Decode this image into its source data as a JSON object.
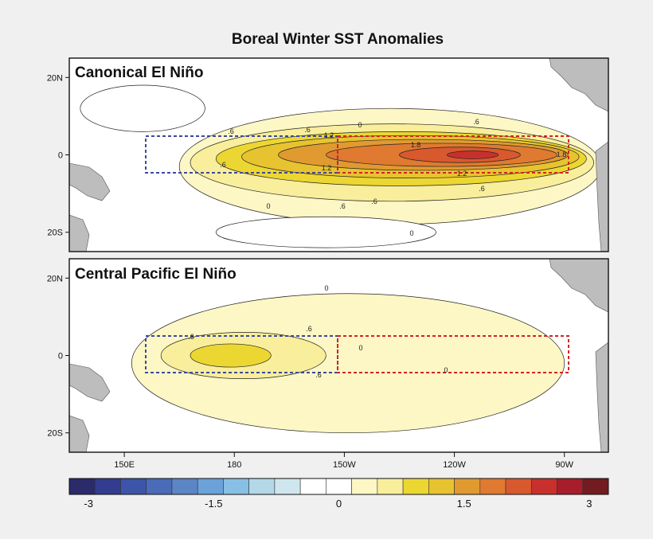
{
  "title": "Boreal Winter SST Anomalies",
  "chart_data": {
    "type": "heatmap",
    "title": "Boreal Winter SST Anomalies",
    "x_ticks": [
      "150E",
      "180",
      "150W",
      "120W",
      "90W"
    ],
    "x_tick_values": [
      150,
      180,
      210,
      240,
      270
    ],
    "xlim": [
      135,
      282
    ],
    "y_ticks": [
      "20N",
      "0",
      "20S"
    ],
    "y_tick_values": [
      20,
      0,
      -20
    ],
    "ylim": [
      -25,
      25
    ],
    "colorbar": {
      "tick_labels": [
        "-3",
        "-1.5",
        "0",
        "1.5",
        "3"
      ],
      "tick_values": [
        -3,
        -1.5,
        0,
        1.5,
        3
      ],
      "range": [
        -3,
        3
      ],
      "levels": [
        -3,
        -2.7,
        -2.4,
        -2.1,
        -1.8,
        -1.5,
        -1.2,
        -0.9,
        -0.6,
        -0.3,
        0,
        0.3,
        0.6,
        0.9,
        1.2,
        1.5,
        1.8,
        2.1,
        2.4,
        2.7,
        3
      ],
      "colors": [
        "#2b2a6b",
        "#333d8f",
        "#3d55a8",
        "#4a6cb8",
        "#5c85c6",
        "#6aa2d9",
        "#88bfe4",
        "#b3d8e8",
        "#cfe6ee",
        "#ffffff",
        "#ffffff",
        "#fcf7c4",
        "#f8ee9c",
        "#ecd732",
        "#e7c330",
        "#e09a30",
        "#df7a30",
        "#d8592e",
        "#c8302c",
        "#a81d2a",
        "#721c20"
      ]
    },
    "panels": [
      {
        "label": "Canonical El Niño",
        "contour_labels": [
          ".6",
          ".6",
          "1.2",
          "1.2",
          "1.8",
          "1.8",
          ".6",
          ".6",
          ".6",
          "1.2",
          ".6",
          "0",
          "0",
          ".6",
          "0"
        ],
        "regions": [
          {
            "name": "west box",
            "color": "#3c48a0",
            "lon": [
              160,
              200
            ],
            "lat": [
              -5,
              5
            ]
          },
          {
            "name": "east box",
            "color": "#d22424",
            "lon": [
              200,
              270
            ],
            "lat": [
              -5,
              5
            ]
          }
        ],
        "anomaly_blobs": [
          {
            "lon": [
              165,
              280
            ],
            "lat": [
              -18,
              12
            ],
            "value": 0.3
          },
          {
            "lon": [
              168,
              278
            ],
            "lat": [
              -12,
              8
            ],
            "value": 0.6
          },
          {
            "lon": [
              175,
              276
            ],
            "lat": [
              -8,
              6
            ],
            "value": 0.9
          },
          {
            "lon": [
              182,
              274
            ],
            "lat": [
              -6,
              5
            ],
            "value": 1.2
          },
          {
            "lon": [
              192,
              271
            ],
            "lat": [
              -4,
              4
            ],
            "value": 1.5
          },
          {
            "lon": [
              205,
              268
            ],
            "lat": [
              -3,
              3
            ],
            "value": 1.8
          },
          {
            "lon": [
              225,
              258
            ],
            "lat": [
              -2,
              2
            ],
            "value": 2.1
          },
          {
            "lon": [
              238,
              252
            ],
            "lat": [
              -1,
              1
            ],
            "value": 2.4
          },
          {
            "lon": [
              138,
              172
            ],
            "lat": [
              6,
              18
            ],
            "value": -0.3
          },
          {
            "lon": [
              175,
              235
            ],
            "lat": [
              -24,
              -16
            ],
            "value": -0.3
          }
        ]
      },
      {
        "label": "Central Pacific El Niño",
        "contour_labels": [
          ".6",
          ".6",
          ".6",
          "0",
          "0",
          "0"
        ],
        "regions": [
          {
            "name": "west box",
            "color": "#3c48a0",
            "lon": [
              160,
              200
            ],
            "lat": [
              -5,
              5
            ]
          },
          {
            "name": "east box",
            "color": "#d22424",
            "lon": [
              200,
              270
            ],
            "lat": [
              -5,
              5
            ]
          }
        ],
        "anomaly_blobs": [
          {
            "lon": [
              152,
              270
            ],
            "lat": [
              -20,
              16
            ],
            "value": 0.3
          },
          {
            "lon": [
              160,
              205
            ],
            "lat": [
              -6,
              6
            ],
            "value": 0.6
          },
          {
            "lon": [
              168,
              190
            ],
            "lat": [
              -3,
              3
            ],
            "value": 0.9
          }
        ]
      }
    ]
  }
}
